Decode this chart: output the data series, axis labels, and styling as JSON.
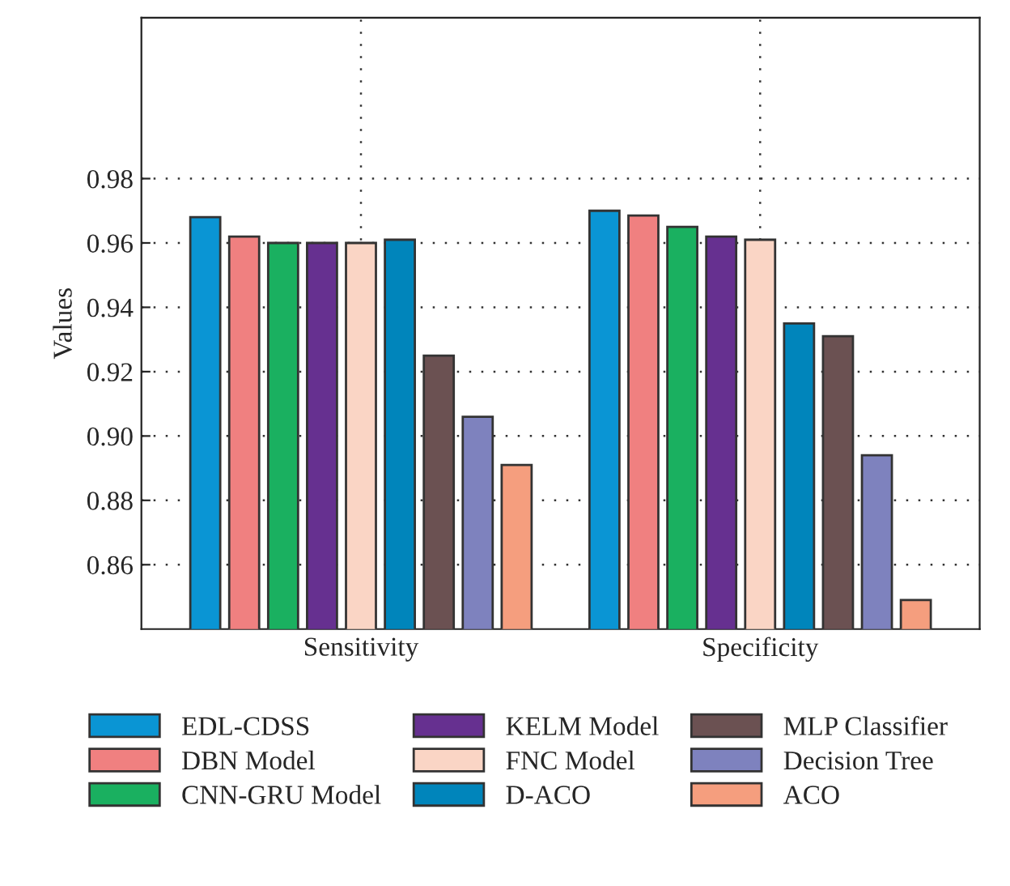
{
  "chart_data": {
    "type": "bar",
    "ylabel": "Values",
    "categories": [
      "Sensitivity",
      "Specificity"
    ],
    "ylim": [
      0.84,
      1.03
    ],
    "yticks": [
      0.86,
      0.88,
      {
        "value": 0.9,
        "label": "0.90"
      },
      0.92,
      0.94,
      0.96,
      0.98
    ],
    "grid": true,
    "legend": "bottom",
    "series": [
      {
        "name": "EDL-CDSS",
        "color": "#0a95d4",
        "values": [
          0.968,
          0.97
        ]
      },
      {
        "name": "DBN Model",
        "color": "#f08080",
        "values": [
          0.962,
          0.9685
        ]
      },
      {
        "name": "CNN-GRU Model",
        "color": "#1ab060",
        "values": [
          0.96,
          0.965
        ]
      },
      {
        "name": "KELM Model",
        "color": "#663090",
        "values": [
          0.96,
          0.962
        ]
      },
      {
        "name": "FNC Model",
        "color": "#fad5c5",
        "values": [
          0.96,
          0.961
        ]
      },
      {
        "name": "D-ACO",
        "color": "#0085bb",
        "values": [
          0.961,
          0.935
        ]
      },
      {
        "name": "MLP Classifier",
        "color": "#6b5152",
        "values": [
          0.925,
          0.931
        ]
      },
      {
        "name": "Decision Tree",
        "color": "#7e82be",
        "values": [
          0.906,
          0.894
        ]
      },
      {
        "name": "ACO",
        "color": "#f59e7e",
        "values": [
          0.891,
          0.849
        ]
      }
    ]
  }
}
